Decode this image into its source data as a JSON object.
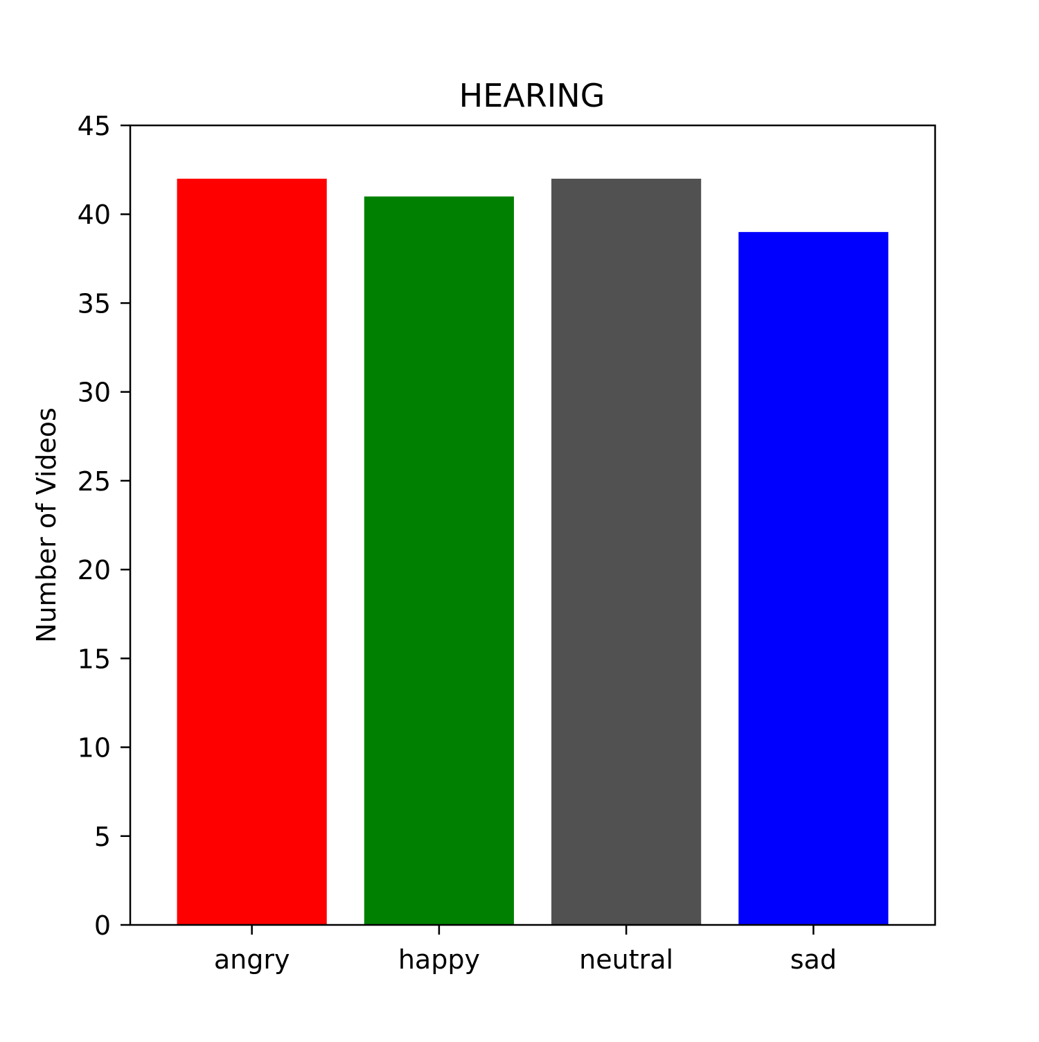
{
  "chart_data": {
    "type": "bar",
    "title": "HEARING",
    "xlabel": "",
    "ylabel": "Number of Videos",
    "categories": [
      "angry",
      "happy",
      "neutral",
      "sad"
    ],
    "values": [
      42,
      41,
      42,
      39
    ],
    "bar_colors": [
      "#ff0000",
      "#008000",
      "#515151",
      "#0000ff"
    ],
    "ylim": [
      0,
      45
    ],
    "yticks": [
      0,
      5,
      10,
      15,
      20,
      25,
      30,
      35,
      40,
      45
    ],
    "grid": false,
    "legend": "none"
  }
}
